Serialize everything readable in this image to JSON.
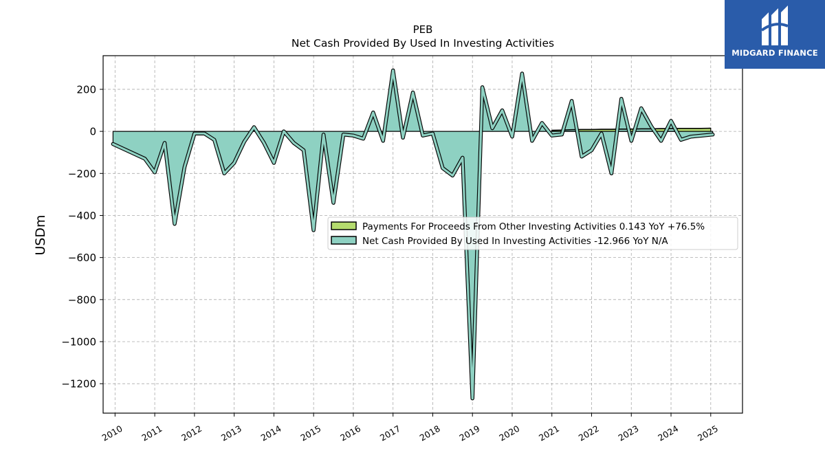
{
  "header": {
    "ticker": "PEB",
    "title": "Net Cash Provided By Used In Investing Activities"
  },
  "brand": {
    "name": "MIDGARD FINANCE",
    "color": "#2a5caa",
    "icon": "midgard-logo-icon"
  },
  "chart_data": {
    "type": "area",
    "title": "PEB",
    "subtitle": "Net Cash Provided By Used In Investing Activities",
    "ylabel": "USDm",
    "xlabel": "",
    "xlim": [
      2009.7,
      2025.8
    ],
    "ylim": [
      -1340,
      360
    ],
    "x_ticks": [
      "2010",
      "2011",
      "2012",
      "2013",
      "2014",
      "2015",
      "2016",
      "2017",
      "2018",
      "2019",
      "2020",
      "2021",
      "2022",
      "2023",
      "2024",
      "2025"
    ],
    "y_ticks": [
      200,
      0,
      -200,
      -400,
      -600,
      -800,
      -1000,
      -1200
    ],
    "y_tick_labels": [
      "200",
      "0",
      "−200",
      "−400",
      "−600",
      "−800",
      "−1000",
      "−1200"
    ],
    "grid": true,
    "legend_position": "center-right",
    "series": [
      {
        "name": "Payments For Proceeds From Other Investing Activities  0.143 YoY +76.5%",
        "color": "#b5dc6e",
        "x": [
          2021.0,
          2021.25,
          2021.5,
          2021.75,
          2022.0,
          2022.25,
          2022.5,
          2022.75,
          2023.0,
          2023.25,
          2023.5,
          2023.75,
          2024.0,
          2024.25,
          2024.5,
          2024.75,
          2025.0
        ],
        "values": [
          5,
          6,
          8,
          9,
          9,
          10,
          10,
          11,
          11,
          12,
          12,
          13,
          13,
          14,
          14,
          14,
          15
        ]
      },
      {
        "name": "Net Cash Provided By Used In Investing Activities  -12.966 YoY N/A",
        "color": "#8ed1c2",
        "x": [
          2009.95,
          2010.75,
          2011.0,
          2011.25,
          2011.5,
          2011.75,
          2012.0,
          2012.25,
          2012.5,
          2012.75,
          2013.0,
          2013.25,
          2013.5,
          2013.75,
          2014.0,
          2014.25,
          2014.5,
          2014.75,
          2015.0,
          2015.25,
          2015.5,
          2015.75,
          2016.0,
          2016.25,
          2016.5,
          2016.75,
          2017.0,
          2017.25,
          2017.5,
          2017.75,
          2018.0,
          2018.25,
          2018.5,
          2018.75,
          2019.0,
          2019.25,
          2019.5,
          2019.75,
          2020.0,
          2020.25,
          2020.5,
          2020.75,
          2021.0,
          2021.25,
          2021.5,
          2021.75,
          2022.0,
          2022.25,
          2022.5,
          2022.75,
          2023.0,
          2023.25,
          2023.5,
          2023.75,
          2024.0,
          2024.25,
          2024.5,
          2025.05
        ],
        "values": [
          -60,
          -130,
          -195,
          -55,
          -440,
          -170,
          -10,
          -10,
          -40,
          -200,
          -150,
          -50,
          20,
          -55,
          -150,
          0,
          -55,
          -90,
          -470,
          -15,
          -340,
          -15,
          -20,
          -35,
          90,
          -45,
          290,
          -30,
          185,
          -20,
          -10,
          -175,
          -210,
          -125,
          -1270,
          210,
          15,
          100,
          -25,
          275,
          -45,
          40,
          -20,
          -15,
          145,
          -120,
          -90,
          -10,
          -200,
          155,
          -45,
          110,
          25,
          -45,
          50,
          -40,
          -25,
          -15
        ]
      }
    ]
  }
}
